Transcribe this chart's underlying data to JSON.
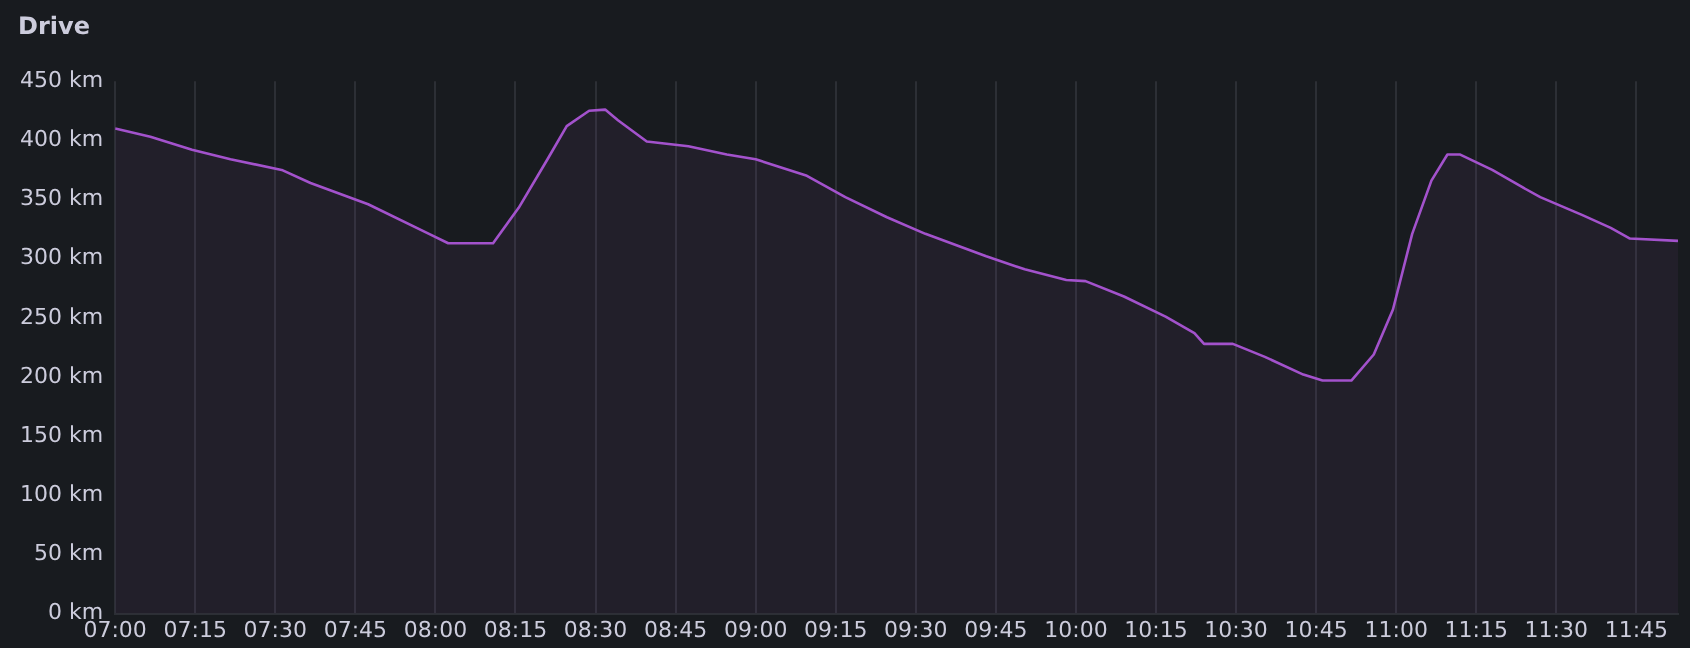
{
  "chart_data": {
    "type": "area",
    "title": "Drive",
    "x": [
      7.0,
      7.11,
      7.24,
      7.36,
      7.52,
      7.61,
      7.79,
      7.98,
      8.04,
      8.18,
      8.26,
      8.35,
      8.41,
      8.48,
      8.53,
      8.57,
      8.66,
      8.79,
      8.91,
      9.0,
      9.16,
      9.28,
      9.41,
      9.53,
      9.72,
      9.84,
      9.97,
      10.03,
      10.15,
      10.28,
      10.37,
      10.4,
      10.49,
      10.59,
      10.71,
      10.77,
      10.86,
      10.93,
      10.99,
      11.05,
      11.11,
      11.16,
      11.2,
      11.3,
      11.39,
      11.45,
      11.58,
      11.67,
      11.73,
      11.88
    ],
    "series": [
      {
        "color": "#a352cc",
        "values": [
          410,
          403,
          392,
          384,
          375,
          364,
          346,
          321,
          313,
          313,
          343,
          384,
          412,
          425,
          426,
          417,
          399,
          395,
          388,
          384,
          370,
          352,
          335,
          321,
          302,
          291,
          282,
          281,
          268,
          251,
          237,
          228,
          228,
          217,
          202,
          197,
          197,
          219,
          257,
          321,
          366,
          388,
          388,
          375,
          361,
          352,
          337,
          326,
          317,
          315
        ]
      }
    ],
    "xlim": [
      7,
      11.88
    ],
    "xticks": [
      {
        "value": 7,
        "label": "07:00"
      },
      {
        "value": 7.25,
        "label": "07:15"
      },
      {
        "value": 7.5,
        "label": "07:30"
      },
      {
        "value": 7.75,
        "label": "07:45"
      },
      {
        "value": 8,
        "label": "08:00"
      },
      {
        "value": 8.25,
        "label": "08:15"
      },
      {
        "value": 8.5,
        "label": "08:30"
      },
      {
        "value": 8.75,
        "label": "08:45"
      },
      {
        "value": 9,
        "label": "09:00"
      },
      {
        "value": 9.25,
        "label": "09:15"
      },
      {
        "value": 9.5,
        "label": "09:30"
      },
      {
        "value": 9.75,
        "label": "09:45"
      },
      {
        "value": 10,
        "label": "10:00"
      },
      {
        "value": 10.25,
        "label": "10:15"
      },
      {
        "value": 10.5,
        "label": "10:30"
      },
      {
        "value": 10.75,
        "label": "10:45"
      },
      {
        "value": 11,
        "label": "11:00"
      },
      {
        "value": 11.25,
        "label": "11:15"
      },
      {
        "value": 11.5,
        "label": "11:30"
      },
      {
        "value": 11.75,
        "label": "11:45"
      }
    ],
    "ylim": [
      0,
      450
    ],
    "yticks": [
      {
        "value": 0,
        "label": "0 km"
      },
      {
        "value": 50,
        "label": "50 km"
      },
      {
        "value": 100,
        "label": "100 km"
      },
      {
        "value": 150,
        "label": "150 km"
      },
      {
        "value": 200,
        "label": "200 km"
      },
      {
        "value": 250,
        "label": "250 km"
      },
      {
        "value": 300,
        "label": "300 km"
      },
      {
        "value": 350,
        "label": "350 km"
      },
      {
        "value": 400,
        "label": "400 km"
      },
      {
        "value": 450,
        "label": "450 km"
      }
    ],
    "grid": "x",
    "legend": false,
    "marker": "none",
    "line_style": "solid"
  }
}
